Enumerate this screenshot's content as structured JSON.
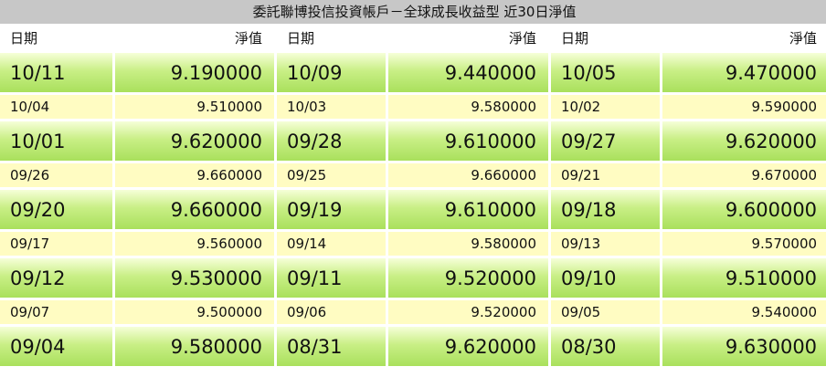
{
  "title": "委託聯博投信投資帳戶－全球成長收益型 近30日淨值",
  "headers": {
    "date": "日期",
    "value": "淨值"
  },
  "rows": [
    {
      "size": "big",
      "cells": [
        [
          "10/11",
          "9.190000"
        ],
        [
          "10/09",
          "9.440000"
        ],
        [
          "10/05",
          "9.470000"
        ]
      ]
    },
    {
      "size": "small",
      "cells": [
        [
          "10/04",
          "9.510000"
        ],
        [
          "10/03",
          "9.580000"
        ],
        [
          "10/02",
          "9.590000"
        ]
      ]
    },
    {
      "size": "big",
      "cells": [
        [
          "10/01",
          "9.620000"
        ],
        [
          "09/28",
          "9.610000"
        ],
        [
          "09/27",
          "9.620000"
        ]
      ]
    },
    {
      "size": "small",
      "cells": [
        [
          "09/26",
          "9.660000"
        ],
        [
          "09/25",
          "9.660000"
        ],
        [
          "09/21",
          "9.670000"
        ]
      ]
    },
    {
      "size": "big",
      "cells": [
        [
          "09/20",
          "9.660000"
        ],
        [
          "09/19",
          "9.610000"
        ],
        [
          "09/18",
          "9.600000"
        ]
      ]
    },
    {
      "size": "small",
      "cells": [
        [
          "09/17",
          "9.560000"
        ],
        [
          "09/14",
          "9.580000"
        ],
        [
          "09/13",
          "9.570000"
        ]
      ]
    },
    {
      "size": "big",
      "cells": [
        [
          "09/12",
          "9.530000"
        ],
        [
          "09/11",
          "9.520000"
        ],
        [
          "09/10",
          "9.510000"
        ]
      ]
    },
    {
      "size": "small",
      "cells": [
        [
          "09/07",
          "9.500000"
        ],
        [
          "09/06",
          "9.520000"
        ],
        [
          "09/05",
          "9.540000"
        ]
      ]
    },
    {
      "size": "big",
      "cells": [
        [
          "09/04",
          "9.580000"
        ],
        [
          "08/31",
          "9.620000"
        ],
        [
          "08/30",
          "9.630000"
        ]
      ]
    }
  ]
}
